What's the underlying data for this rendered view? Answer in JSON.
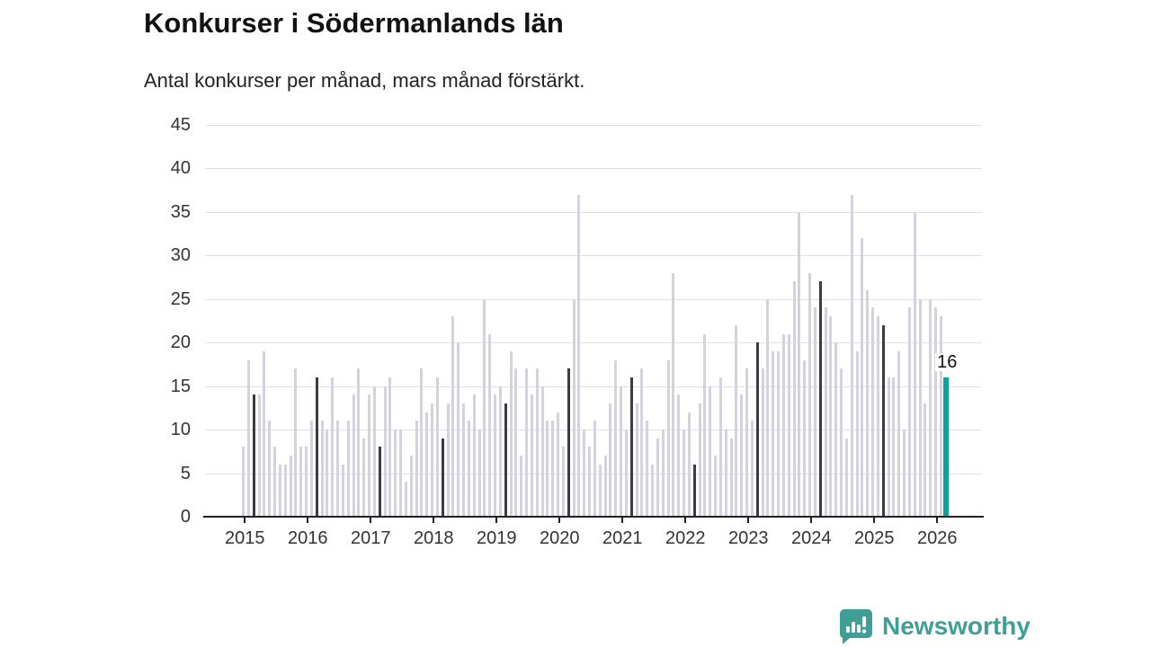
{
  "header": {
    "title": "Konkurser i Södermanlands län",
    "subtitle": "Antal konkurser per månad, mars månad förstärkt."
  },
  "chart_data": {
    "type": "bar",
    "title": "Konkurser i Södermanlands län",
    "xlabel": "",
    "ylabel": "",
    "ylim": [
      0,
      45
    ],
    "yticks": [
      0,
      5,
      10,
      15,
      20,
      25,
      30,
      35,
      40,
      45
    ],
    "grid": "horizontal",
    "legend": "none",
    "highlight_rule": "March of each year drawn dark; March 2026 drawn teal with value label",
    "categories_years": [
      "2015",
      "2016",
      "2017",
      "2018",
      "2019",
      "2020",
      "2021",
      "2022",
      "2023",
      "2024",
      "2025",
      "2026"
    ],
    "years": [
      {
        "year": "2015",
        "values": [
          8,
          18,
          14,
          14,
          19,
          11,
          8,
          6,
          6,
          7,
          17,
          8
        ]
      },
      {
        "year": "2016",
        "values": [
          8,
          11,
          16,
          11,
          10,
          16,
          11,
          6,
          11,
          14,
          17,
          9
        ]
      },
      {
        "year": "2017",
        "values": [
          14,
          15,
          8,
          15,
          16,
          10,
          10,
          4,
          7,
          11,
          17,
          12
        ]
      },
      {
        "year": "2018",
        "values": [
          13,
          16,
          9,
          13,
          23,
          20,
          13,
          11,
          14,
          10,
          25,
          21
        ]
      },
      {
        "year": "2019",
        "values": [
          14,
          15,
          13,
          19,
          17,
          7,
          17,
          14,
          17,
          15,
          11,
          11
        ]
      },
      {
        "year": "2020",
        "values": [
          12,
          8,
          17,
          25,
          37,
          10,
          8,
          11,
          6,
          7,
          13,
          18
        ]
      },
      {
        "year": "2021",
        "values": [
          15,
          10,
          16,
          13,
          17,
          11,
          6,
          9,
          10,
          18,
          28,
          14
        ]
      },
      {
        "year": "2022",
        "values": [
          10,
          12,
          6,
          13,
          21,
          15,
          7,
          16,
          10,
          9,
          22,
          14
        ]
      },
      {
        "year": "2023",
        "values": [
          17,
          11,
          20,
          17,
          25,
          19,
          19,
          21,
          21,
          27,
          35,
          18
        ]
      },
      {
        "year": "2024",
        "values": [
          28,
          24,
          27,
          24,
          23,
          20,
          17,
          9,
          37,
          19,
          32,
          26
        ]
      },
      {
        "year": "2025",
        "values": [
          24,
          23,
          22,
          16,
          16,
          19,
          10,
          24,
          35,
          25,
          13,
          25
        ]
      },
      {
        "year": "2026",
        "values": [
          24,
          23,
          16
        ]
      }
    ],
    "march_values": {
      "2015": 14,
      "2016": 16,
      "2017": 8,
      "2018": 9,
      "2019": 13,
      "2020": 17,
      "2021": 16,
      "2022": 6,
      "2023": 20,
      "2024": 27,
      "2025": 22,
      "2026": 16
    },
    "annotation": {
      "text": "16",
      "value": 16,
      "month_index_from_jan2015": 134
    },
    "colors": {
      "bar_default": "#d4d2de",
      "bar_march": "#3b3b49",
      "bar_highlight": "#0aa39a",
      "gridline": "#e0e0e5",
      "axis": "#222222",
      "tick_text": "#333333"
    }
  },
  "footer": {
    "logo_text": "Newsworthy",
    "logo_color": "#3f9e96"
  }
}
